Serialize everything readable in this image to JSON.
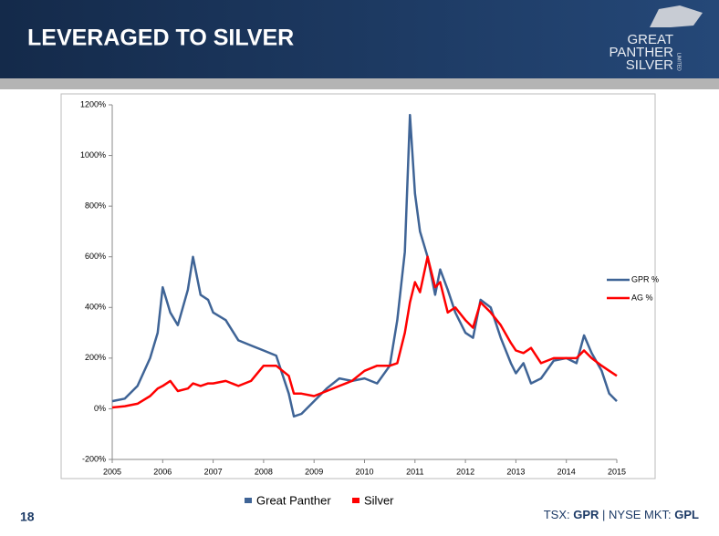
{
  "header": {
    "title": "LEVERAGED TO SILVER",
    "logo": [
      "GREAT",
      "PANTHER",
      "SILVER"
    ],
    "logo_small": "LIMITED"
  },
  "chart_data": {
    "type": "line",
    "x": [
      2005,
      2005.25,
      2005.5,
      2005.75,
      2005.9,
      2006,
      2006.15,
      2006.3,
      2006.5,
      2006.6,
      2006.75,
      2006.9,
      2007,
      2007.25,
      2007.5,
      2007.75,
      2008,
      2008.25,
      2008.5,
      2008.6,
      2008.75,
      2009,
      2009.25,
      2009.5,
      2009.75,
      2010,
      2010.25,
      2010.5,
      2010.65,
      2010.8,
      2010.9,
      2011,
      2011.1,
      2011.25,
      2011.4,
      2011.5,
      2011.65,
      2011.8,
      2012,
      2012.15,
      2012.3,
      2012.5,
      2012.7,
      2012.9,
      2013,
      2013.15,
      2013.3,
      2013.5,
      2013.75,
      2014,
      2014.2,
      2014.35,
      2014.5,
      2014.7,
      2014.85,
      2015
    ],
    "series": [
      {
        "name": "GPR %",
        "color": "#3f6496",
        "values": [
          30,
          40,
          90,
          200,
          300,
          480,
          380,
          330,
          470,
          600,
          450,
          430,
          380,
          350,
          270,
          250,
          230,
          210,
          60,
          -30,
          -20,
          30,
          80,
          120,
          110,
          120,
          100,
          170,
          350,
          620,
          1160,
          850,
          700,
          600,
          450,
          550,
          470,
          380,
          300,
          280,
          430,
          400,
          280,
          180,
          140,
          180,
          100,
          120,
          190,
          200,
          180,
          290,
          220,
          150,
          60,
          30
        ]
      },
      {
        "name": "AG %",
        "color": "#ff0000",
        "values": [
          5,
          10,
          20,
          50,
          80,
          90,
          110,
          70,
          80,
          100,
          90,
          100,
          100,
          110,
          90,
          110,
          170,
          170,
          130,
          60,
          60,
          50,
          70,
          90,
          110,
          150,
          170,
          170,
          180,
          300,
          420,
          500,
          460,
          600,
          480,
          500,
          380,
          400,
          350,
          320,
          420,
          380,
          330,
          260,
          230,
          220,
          240,
          180,
          200,
          200,
          200,
          230,
          200,
          170,
          150,
          130
        ]
      }
    ],
    "xlim": [
      2005,
      2015
    ],
    "xticks": [
      2005,
      2006,
      2007,
      2008,
      2009,
      2010,
      2011,
      2012,
      2013,
      2014,
      2015
    ],
    "ylim": [
      -200,
      1200
    ],
    "yticks": [
      {
        "value": -200,
        "label": "-200%"
      },
      {
        "value": 0,
        "label": "0%"
      },
      {
        "value": 200,
        "label": "200%"
      },
      {
        "value": 400,
        "label": "400%"
      },
      {
        "value": 600,
        "label": "600%"
      },
      {
        "value": 800,
        "label": "800%"
      },
      {
        "value": 1000,
        "label": "1000%"
      },
      {
        "value": 1200,
        "label": "1200%"
      }
    ],
    "legend": "right",
    "grid": false,
    "bottom_legend": [
      {
        "name": "Great Panther",
        "color": "#3f6496"
      },
      {
        "name": "Silver",
        "color": "#ff0000"
      }
    ]
  },
  "footer": {
    "page": "18",
    "parts": [
      "TSX: ",
      "GPR",
      " | NYSE MKT: ",
      "GPL"
    ]
  }
}
